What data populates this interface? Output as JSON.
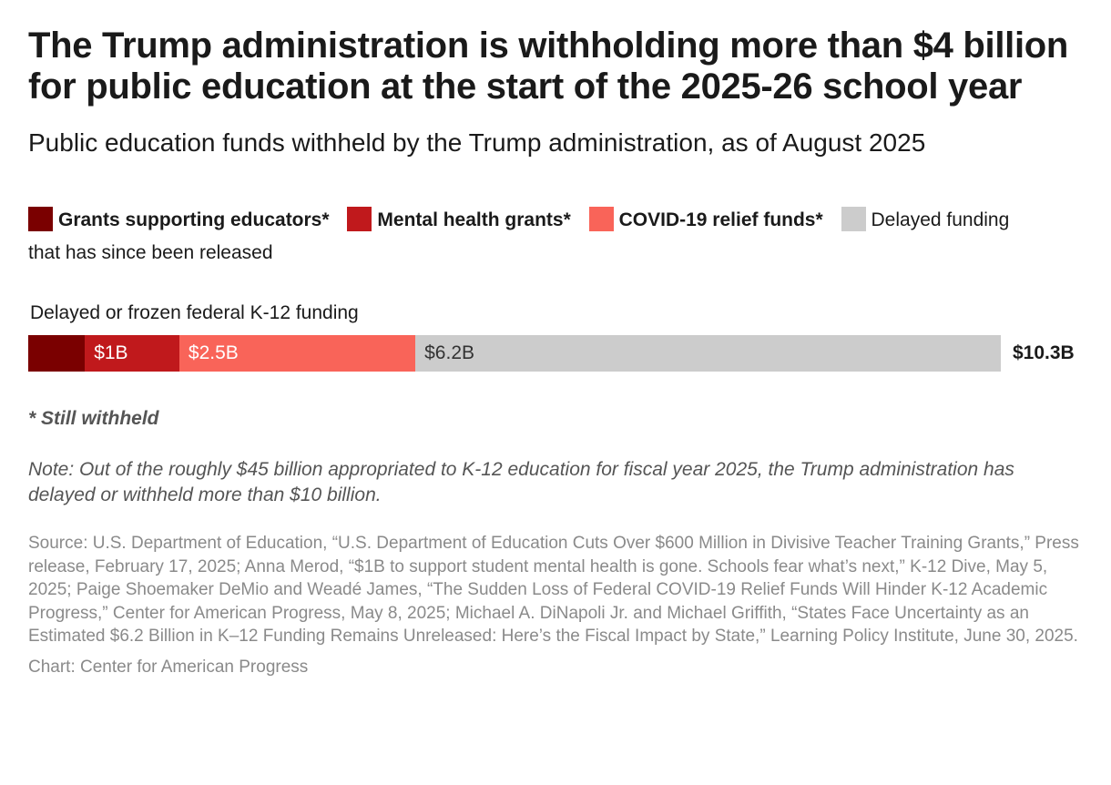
{
  "title": "The Trump administration is withholding more than $4 billion for public education at the start of the 2025-26 school year",
  "subtitle": "Public education funds withheld by the Trump administration, as of August 2025",
  "chart_data": {
    "type": "bar",
    "orientation": "horizontal",
    "stacked": true,
    "categories": [
      "Delayed or frozen federal K-12 funding"
    ],
    "series": [
      {
        "name": "Grants supporting educators*",
        "values": [
          0.6
        ],
        "label": "",
        "color": "#7a0000",
        "label_color": "#ffffff"
      },
      {
        "name": "Mental health grants*",
        "values": [
          1.0
        ],
        "label": "$1B",
        "color": "#c0191c",
        "label_color": "#ffffff"
      },
      {
        "name": "COVID-19 relief funds*",
        "values": [
          2.5
        ],
        "label": "$2.5B",
        "color": "#f96459",
        "label_color": "#ffffff"
      },
      {
        "name": "Delayed funding that has since been released",
        "values": [
          6.2
        ],
        "label": "$6.2B",
        "color": "#cccccc",
        "label_color": "#333333"
      }
    ],
    "total_label": "$10.3B",
    "unit": "billion USD",
    "xlim": [
      0,
      10.3
    ],
    "grid": false,
    "legend": "top"
  },
  "footnote": "* Still withheld",
  "note": "Note: Out of the roughly $45 billion appropriated to K-12 education for fiscal year 2025, the Trump administration has delayed or withheld more than $10 billion.",
  "source": "Source: U.S. Department of Education, “U.S. Department of Education Cuts Over $600 Million in Divisive Teacher Training Grants,” Press release, February 17, 2025; Anna Merod, “$1B to support student mental health is gone. Schools fear what’s next,” K-12 Dive, May 5, 2025; Paige Shoemaker DeMio and Weadé James, “The Sudden Loss of Federal COVID-19 Relief Funds Will Hinder K-12 Academic Progress,” Center for American Progress, May 8, 2025; Michael A. DiNapoli Jr. and Michael Griffith, “States Face Uncertainty as an Estimated $6.2 Billion in K–12 Funding Remains Unreleased: Here’s the Fiscal Impact by State,” Learning Policy Institute, June 30, 2025.",
  "credit": "Chart: Center for American Progress"
}
